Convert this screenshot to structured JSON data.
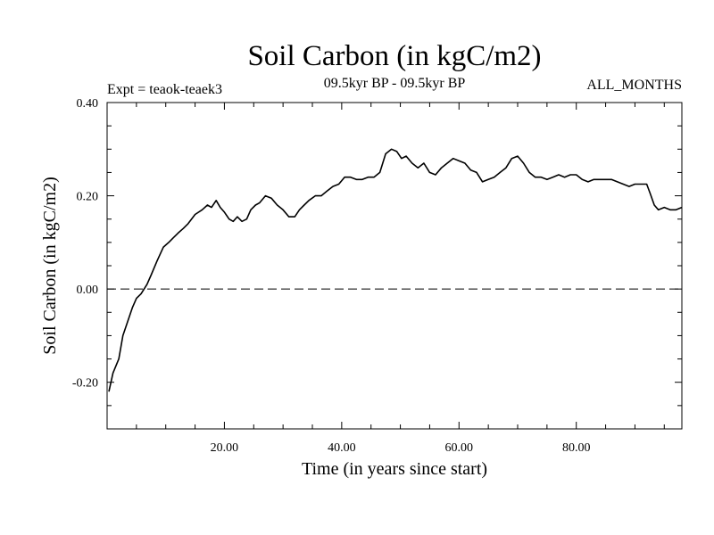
{
  "chart_data": {
    "type": "line",
    "title": "Soil Carbon (in kgC/m2)",
    "experiment": "Expt = teaok-teaek3",
    "period": "09.5kyr BP - 09.5kyr BP",
    "season": "ALL_MONTHS",
    "xlabel": "Time (in years since start)",
    "ylabel": "Soil Carbon (in kgC/m2)",
    "xlim": [
      0,
      98
    ],
    "ylim": [
      -0.3,
      0.4
    ],
    "xticks": [
      20,
      40,
      60,
      80
    ],
    "xtick_labels": [
      "20.00",
      "40.00",
      "60.00",
      "80.00"
    ],
    "yticks": [
      -0.2,
      0.0,
      0.2,
      0.4
    ],
    "ytick_labels": [
      "-0.20",
      "0.00",
      "0.20",
      "0.40"
    ],
    "reference_line": 0.0,
    "series": [
      {
        "name": "Soil Carbon",
        "x": [
          0.3,
          1,
          2,
          2.7,
          3.5,
          4.3,
          5,
          5.8,
          6.8,
          7.5,
          8.5,
          9.6,
          10.5,
          11.3,
          12.1,
          13,
          13.8,
          15,
          16.2,
          17.1,
          17.8,
          18.6,
          19.3,
          20,
          20.8,
          21.5,
          22.2,
          23,
          23.8,
          24.5,
          25.3,
          26,
          27,
          28,
          29,
          30,
          31,
          32,
          32.8,
          33.6,
          34.4,
          35.5,
          36.5,
          37.5,
          38.5,
          39.5,
          40.5,
          41.5,
          42.5,
          43.5,
          44.5,
          45.5,
          46.5,
          47.5,
          48.5,
          49.4,
          50.2,
          51,
          52,
          53,
          54,
          55,
          56,
          57,
          58,
          59,
          60,
          61,
          62,
          63,
          64,
          65,
          66,
          67,
          68,
          69,
          70,
          71,
          72,
          73,
          74,
          75,
          76,
          77,
          78,
          79,
          80,
          81,
          82,
          83,
          84,
          85,
          86,
          87,
          88,
          89,
          90,
          91,
          92,
          92.6,
          93.3,
          94,
          95,
          96,
          97,
          98
        ],
        "values": [
          -0.22,
          -0.18,
          -0.15,
          -0.1,
          -0.07,
          -0.04,
          -0.02,
          -0.01,
          0.01,
          0.03,
          0.06,
          0.09,
          0.1,
          0.11,
          0.12,
          0.13,
          0.14,
          0.16,
          0.17,
          0.18,
          0.175,
          0.19,
          0.175,
          0.165,
          0.15,
          0.145,
          0.155,
          0.145,
          0.15,
          0.17,
          0.18,
          0.185,
          0.2,
          0.195,
          0.18,
          0.17,
          0.155,
          0.155,
          0.17,
          0.18,
          0.19,
          0.2,
          0.2,
          0.21,
          0.22,
          0.225,
          0.24,
          0.24,
          0.235,
          0.235,
          0.24,
          0.24,
          0.25,
          0.29,
          0.3,
          0.295,
          0.28,
          0.285,
          0.27,
          0.26,
          0.27,
          0.25,
          0.245,
          0.26,
          0.27,
          0.28,
          0.275,
          0.27,
          0.255,
          0.25,
          0.23,
          0.235,
          0.24,
          0.25,
          0.26,
          0.28,
          0.285,
          0.27,
          0.25,
          0.24,
          0.24,
          0.235,
          0.24,
          0.245,
          0.24,
          0.245,
          0.245,
          0.235,
          0.23,
          0.235,
          0.235,
          0.235,
          0.235,
          0.23,
          0.225,
          0.22,
          0.225,
          0.225,
          0.225,
          0.205,
          0.18,
          0.17,
          0.175,
          0.17,
          0.17,
          0.175
        ]
      }
    ]
  }
}
